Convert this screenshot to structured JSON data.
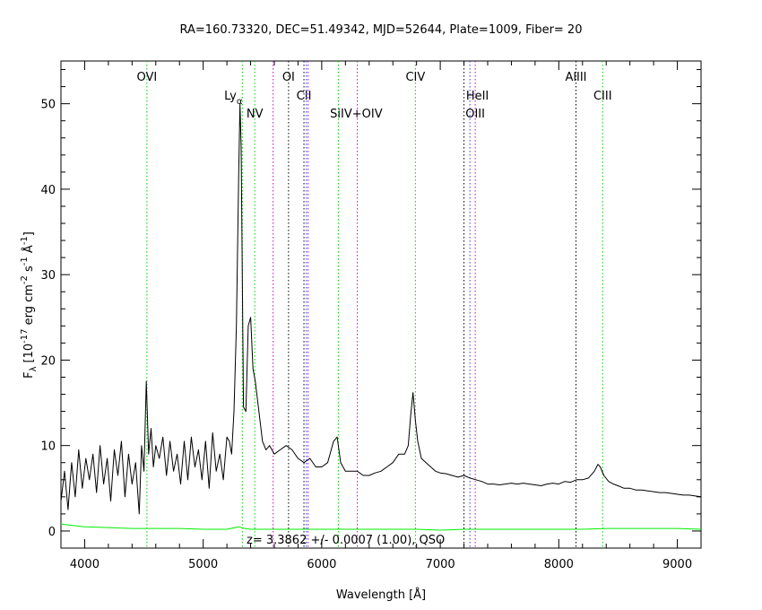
{
  "chart_data": {
    "type": "line",
    "title": "RA=160.73320, DEC=51.49342, MJD=52644, Plate=1009, Fiber= 20",
    "xlabel": "Wavelength [Å]",
    "ylabel": "F",
    "ylabel_sub": "λ",
    "ylabel_units": "[10",
    "ylabel_exp1": "-17",
    "ylabel_mid": " erg cm",
    "ylabel_exp2": "-2",
    "ylabel_mid2": " s",
    "ylabel_exp3": "-1",
    "ylabel_mid3": " Å",
    "ylabel_exp4": "-1",
    "ylabel_end": "]",
    "xlim": [
      3800,
      9200
    ],
    "ylim": [
      -2,
      55
    ],
    "xticks": [
      4000,
      5000,
      6000,
      7000,
      8000,
      9000
    ],
    "yticks": [
      0,
      10,
      20,
      30,
      40,
      50
    ],
    "annotation": "z= 3.3862 +/- 0.0007 (1.00), QSO",
    "grid": false,
    "lines": [
      {
        "label": "OVI",
        "x": 4525,
        "color": "#00cc00",
        "label_row": 0,
        "label_dx": 0
      },
      {
        "label": "Ly",
        "sub": "α",
        "x": 5330,
        "color": "#00cc00",
        "label_row": 1,
        "label_dx": -10
      },
      {
        "label": "NV",
        "x": 5435,
        "color": "#00cc00",
        "label_row": 2,
        "label_dx": 0
      },
      {
        "label": "",
        "x": 5590,
        "color": "#cc00cc",
        "label_row": 0,
        "label_dx": 0
      },
      {
        "label": "OI",
        "x": 5720,
        "color": "#000000",
        "label_row": 0,
        "label_dx": 0
      },
      {
        "label": "CII",
        "x": 5850,
        "color": "#000000",
        "label_row": 1,
        "label_dx": 0
      },
      {
        "label": "",
        "x": 5870,
        "color": "#3333ff",
        "label_row": 0,
        "label_dx": 0
      },
      {
        "label": "",
        "x": 5885,
        "color": "#cc00cc",
        "label_row": 0,
        "label_dx": 0
      },
      {
        "label": "SiIV+OIV",
        "x": 6140,
        "color": "#00cc00",
        "label_row": 2,
        "label_dx": 20
      },
      {
        "label": "",
        "x": 6300,
        "color": "#cc00cc",
        "label_row": 0,
        "label_dx": 0
      },
      {
        "label": "CIV",
        "x": 6790,
        "color": "#00cc00",
        "label_row": 0,
        "label_dx": 0
      },
      {
        "label": "HeII",
        "x": 7200,
        "color": "#000000",
        "label_row": 1,
        "label_dx": 15
      },
      {
        "label": "",
        "x": 7250,
        "color": "#3333ff",
        "label_row": 0,
        "label_dx": 0
      },
      {
        "label": "OIII",
        "x": 7295,
        "color": "#cc00cc",
        "label_row": 2,
        "label_dx": 0
      },
      {
        "label": "AlIII",
        "x": 8145,
        "color": "#000000",
        "label_row": 0,
        "label_dx": 0
      },
      {
        "label": "CIII",
        "x": 8370,
        "color": "#00cc00",
        "label_row": 1,
        "label_dx": 0
      }
    ],
    "series": [
      {
        "color": "#000000",
        "x": [
          3800,
          3830,
          3860,
          3890,
          3920,
          3950,
          3980,
          4010,
          4040,
          4070,
          4100,
          4130,
          4160,
          4190,
          4220,
          4250,
          4280,
          4310,
          4340,
          4370,
          4400,
          4430,
          4460,
          4480,
          4500,
          4520,
          4540,
          4560,
          4580,
          4600,
          4630,
          4660,
          4690,
          4720,
          4750,
          4780,
          4810,
          4840,
          4870,
          4900,
          4930,
          4960,
          4990,
          5020,
          5050,
          5080,
          5110,
          5140,
          5170,
          5200,
          5220,
          5240,
          5260,
          5280,
          5300,
          5310,
          5320,
          5340,
          5360,
          5380,
          5400,
          5420,
          5440,
          5470,
          5500,
          5530,
          5560,
          5600,
          5650,
          5700,
          5750,
          5800,
          5850,
          5900,
          5950,
          6000,
          6050,
          6100,
          6130,
          6160,
          6200,
          6250,
          6300,
          6350,
          6400,
          6450,
          6500,
          6550,
          6600,
          6650,
          6700,
          6730,
          6750,
          6770,
          6790,
          6810,
          6840,
          6880,
          6920,
          6960,
          7000,
          7050,
          7100,
          7150,
          7200,
          7250,
          7300,
          7350,
          7400,
          7450,
          7500,
          7550,
          7600,
          7650,
          7700,
          7750,
          7800,
          7850,
          7900,
          7950,
          8000,
          8050,
          8100,
          8150,
          8200,
          8250,
          8300,
          8330,
          8350,
          8380,
          8420,
          8460,
          8500,
          8550,
          8600,
          8650,
          8700,
          8750,
          8800,
          8850,
          8900,
          8950,
          9000,
          9050,
          9100,
          9150,
          9200
        ],
        "y": [
          3.5,
          7.0,
          2.5,
          8.0,
          4.0,
          9.5,
          5.0,
          8.5,
          6.0,
          9.0,
          4.5,
          10.0,
          5.5,
          8.5,
          3.5,
          9.5,
          6.5,
          10.5,
          4.0,
          9.0,
          5.5,
          8.0,
          2.0,
          10.0,
          7.0,
          17.5,
          9.0,
          12.0,
          7.5,
          10.0,
          8.5,
          11.0,
          6.5,
          10.5,
          7.0,
          9.0,
          5.5,
          10.5,
          6.0,
          11.0,
          7.5,
          9.5,
          6.0,
          10.5,
          5.0,
          11.5,
          7.0,
          9.0,
          6.0,
          11.0,
          10.5,
          9.0,
          14.0,
          24.0,
          42.0,
          50.0,
          45.0,
          14.5,
          14.0,
          24.0,
          25.0,
          19.0,
          17.5,
          14.0,
          10.5,
          9.5,
          10.0,
          9.0,
          9.5,
          10.0,
          9.5,
          8.5,
          8.0,
          8.5,
          7.5,
          7.5,
          8.0,
          10.5,
          11.0,
          8.0,
          7.0,
          7.0,
          7.0,
          6.5,
          6.5,
          6.8,
          7.0,
          7.5,
          8.0,
          9.0,
          9.0,
          10.0,
          13.5,
          16.2,
          13.0,
          10.5,
          8.5,
          8.0,
          7.5,
          7.0,
          6.8,
          6.7,
          6.5,
          6.3,
          6.5,
          6.2,
          6.0,
          5.8,
          5.5,
          5.5,
          5.4,
          5.5,
          5.6,
          5.5,
          5.6,
          5.5,
          5.4,
          5.3,
          5.5,
          5.6,
          5.5,
          5.8,
          5.7,
          6.0,
          6.0,
          6.2,
          7.0,
          7.8,
          7.5,
          6.5,
          5.8,
          5.5,
          5.3,
          5.0,
          5.0,
          4.8,
          4.8,
          4.7,
          4.6,
          4.5,
          4.5,
          4.4,
          4.3,
          4.2,
          4.2,
          4.1,
          4.0
        ]
      },
      {
        "color": "#00ee00",
        "x": [
          3800,
          4000,
          4200,
          4400,
          4600,
          4800,
          5000,
          5200,
          5300,
          5350,
          5400,
          5600,
          5800,
          6000,
          6200,
          6400,
          6600,
          6800,
          7000,
          7200,
          7400,
          7600,
          7800,
          8000,
          8200,
          8400,
          8600,
          8800,
          9000,
          9200
        ],
        "y": [
          0.8,
          0.5,
          0.4,
          0.3,
          0.3,
          0.3,
          0.2,
          0.2,
          0.5,
          0.3,
          0.2,
          0.2,
          0.2,
          0.2,
          0.2,
          0.2,
          0.2,
          0.2,
          0.1,
          0.2,
          0.2,
          0.2,
          0.2,
          0.2,
          0.2,
          0.3,
          0.3,
          0.3,
          0.3,
          0.2
        ]
      }
    ]
  }
}
